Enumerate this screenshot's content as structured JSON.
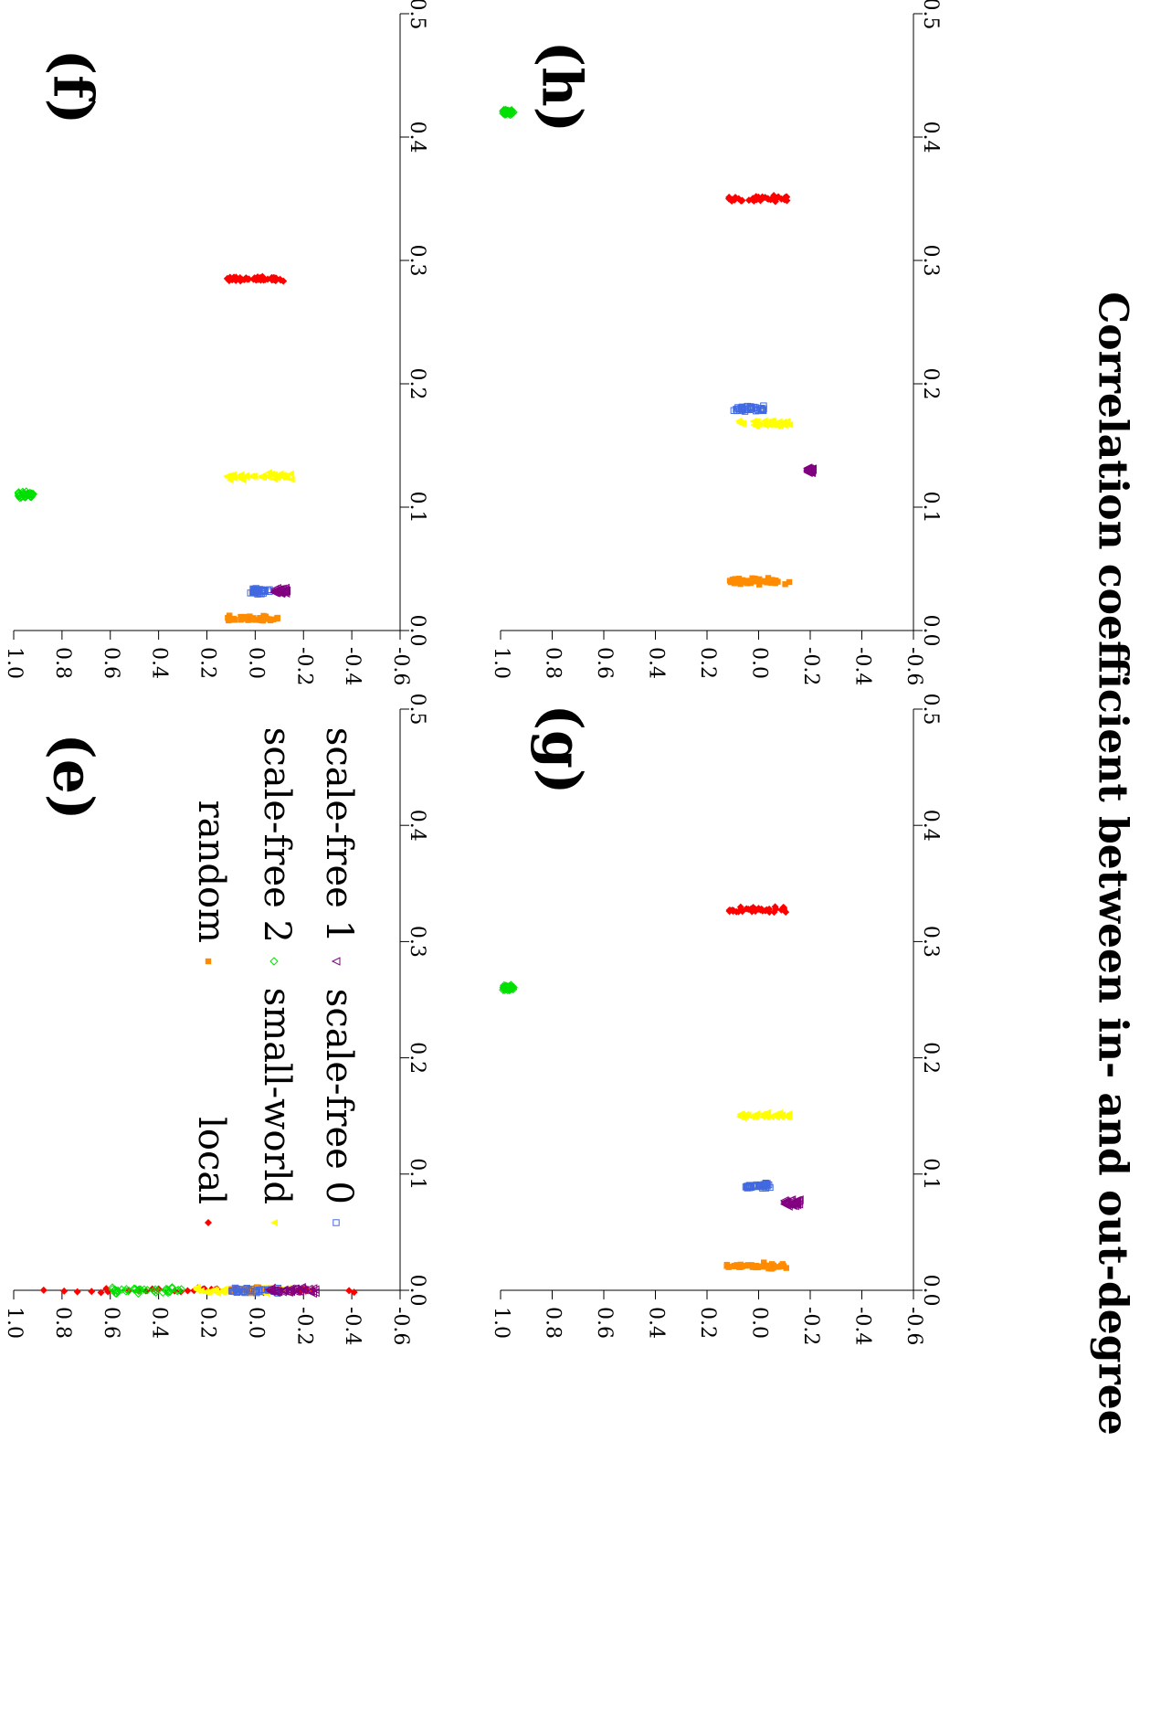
{
  "y_axis_label": "Correlation coefficient between in- and out-degree",
  "series_colors": {
    "local": "#ff0000",
    "small-world": "#ffff00",
    "random": "#ff8c00",
    "scale-free 0": "#4169e1",
    "scale-free 2": "#00e000",
    "scale-free 1": "#800080"
  },
  "legend": [
    {
      "name": "local",
      "marker": "diamond-filled",
      "color": "#ff0000"
    },
    {
      "name": "small-world",
      "marker": "triangle-filled",
      "color": "#ffff00"
    },
    {
      "name": "scale-free 0",
      "marker": "square-open",
      "color": "#4169e1"
    },
    {
      "name": "random",
      "marker": "square-filled",
      "color": "#ff8c00"
    },
    {
      "name": "scale-free 2",
      "marker": "diamond-open",
      "color": "#00e000"
    },
    {
      "name": "scale-free 1",
      "marker": "triangle-open",
      "color": "#800080"
    }
  ],
  "chart_data": [
    {
      "panel": "(e)",
      "type": "scatter",
      "xlim": [
        0,
        0.5
      ],
      "ylim": [
        -0.6,
        1.0
      ],
      "xticks": [
        "0.0",
        "0.1",
        "0.2",
        "0.3",
        "0.4",
        "0.5"
      ],
      "yticks": [
        "1.0",
        "0.8",
        "0.6",
        "0.4",
        "0.2",
        "0.0",
        "-0.2",
        "-0.4",
        "-0.6"
      ],
      "series": [
        {
          "name": "local",
          "x": 0.0,
          "y_range": [
            -0.55,
            0.9
          ]
        },
        {
          "name": "small-world",
          "x": 0.0,
          "y_range": [
            -0.15,
            0.25
          ]
        },
        {
          "name": "random",
          "x": 0.0,
          "y_range": [
            -0.1,
            0.1
          ]
        },
        {
          "name": "scale-free 0",
          "x": 0.0,
          "y_range": [
            -0.1,
            0.1
          ]
        },
        {
          "name": "scale-free 2",
          "x": 0.0,
          "y_range": [
            0.3,
            0.6
          ]
        },
        {
          "name": "scale-free 1",
          "x": 0.0,
          "y_range": [
            -0.25,
            -0.05
          ]
        }
      ]
    },
    {
      "panel": "(f)",
      "type": "scatter",
      "xlim": [
        0,
        0.5
      ],
      "ylim": [
        -0.6,
        1.0
      ],
      "xticks": [
        "0.0",
        "0.1",
        "0.2",
        "0.3",
        "0.4",
        "0.5"
      ],
      "yticks": [
        "1.0",
        "0.8",
        "0.6",
        "0.4",
        "0.2",
        "0.0",
        "-0.2",
        "-0.4",
        "-0.6"
      ],
      "series": [
        {
          "name": "local",
          "x": 0.285,
          "y_range": [
            -0.12,
            0.12
          ]
        },
        {
          "name": "small-world",
          "x": 0.125,
          "y_range": [
            -0.15,
            0.12
          ]
        },
        {
          "name": "random",
          "x": 0.01,
          "y_range": [
            -0.1,
            0.12
          ]
        },
        {
          "name": "scale-free 0",
          "x": 0.032,
          "y_range": [
            -0.06,
            0.02
          ]
        },
        {
          "name": "scale-free 2",
          "x": 0.11,
          "y_range": [
            0.92,
            0.98
          ]
        },
        {
          "name": "scale-free 1",
          "x": 0.032,
          "y_range": [
            -0.13,
            -0.08
          ]
        }
      ]
    },
    {
      "panel": "(g)",
      "type": "scatter",
      "xlim": [
        0,
        0.5
      ],
      "ylim": [
        -0.6,
        1.0
      ],
      "xticks": [
        "0.0",
        "0.1",
        "0.2",
        "0.3",
        "0.4",
        "0.5"
      ],
      "yticks": [
        "1.0",
        "0.8",
        "0.6",
        "0.4",
        "0.2",
        "0.0",
        "-0.2",
        "-0.4",
        "-0.6"
      ],
      "series": [
        {
          "name": "local",
          "x": 0.327,
          "y_range": [
            -0.12,
            0.12
          ]
        },
        {
          "name": "small-world",
          "x": 0.15,
          "y_range": [
            -0.12,
            0.08
          ]
        },
        {
          "name": "random",
          "x": 0.021,
          "y_range": [
            -0.12,
            0.13
          ]
        },
        {
          "name": "scale-free 0",
          "x": 0.09,
          "y_range": [
            -0.05,
            0.05
          ]
        },
        {
          "name": "scale-free 2",
          "x": 0.26,
          "y_range": [
            0.95,
            0.99
          ]
        },
        {
          "name": "scale-free 1",
          "x": 0.075,
          "y_range": [
            -0.16,
            -0.1
          ]
        }
      ]
    },
    {
      "panel": "(h)",
      "type": "scatter",
      "xlim": [
        0,
        0.5
      ],
      "ylim": [
        -0.6,
        1.0
      ],
      "xticks": [
        "0.0",
        "0.1",
        "0.2",
        "0.3",
        "0.4",
        "0.5"
      ],
      "yticks": [
        "1.0",
        "0.8",
        "0.6",
        "0.4",
        "0.2",
        "0.0",
        "-0.2",
        "-0.4",
        "-0.6"
      ],
      "series": [
        {
          "name": "local",
          "x": 0.35,
          "y_range": [
            -0.12,
            0.12
          ]
        },
        {
          "name": "small-world",
          "x": 0.168,
          "y_range": [
            -0.12,
            0.08
          ]
        },
        {
          "name": "random",
          "x": 0.04,
          "y_range": [
            -0.12,
            0.12
          ]
        },
        {
          "name": "scale-free 0",
          "x": 0.18,
          "y_range": [
            -0.02,
            0.1
          ]
        },
        {
          "name": "scale-free 2",
          "x": 0.42,
          "y_range": [
            0.95,
            0.99
          ]
        },
        {
          "name": "scale-free 1",
          "x": 0.13,
          "y_range": [
            -0.21,
            -0.19
          ]
        }
      ]
    }
  ]
}
